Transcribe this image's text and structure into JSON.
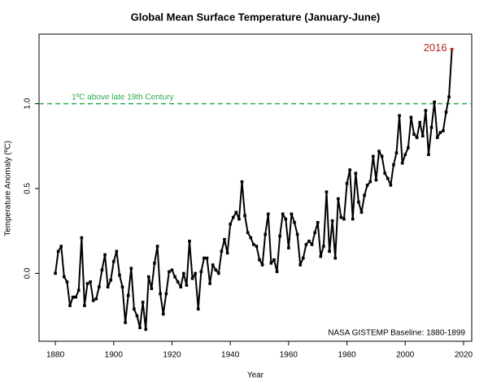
{
  "chart_data": {
    "type": "line",
    "title": "Global Mean Surface Temperature (January-June)",
    "xlabel": "Year",
    "ylabel": "Temperature Anomaly (ºC)",
    "x": [
      1880,
      1881,
      1882,
      1883,
      1884,
      1885,
      1886,
      1887,
      1888,
      1889,
      1890,
      1891,
      1892,
      1893,
      1894,
      1895,
      1896,
      1897,
      1898,
      1899,
      1900,
      1901,
      1902,
      1903,
      1904,
      1905,
      1906,
      1907,
      1908,
      1909,
      1910,
      1911,
      1912,
      1913,
      1914,
      1915,
      1916,
      1917,
      1918,
      1919,
      1920,
      1921,
      1922,
      1923,
      1924,
      1925,
      1926,
      1927,
      1928,
      1929,
      1930,
      1931,
      1932,
      1933,
      1934,
      1935,
      1936,
      1937,
      1938,
      1939,
      1940,
      1941,
      1942,
      1943,
      1944,
      1945,
      1946,
      1947,
      1948,
      1949,
      1950,
      1951,
      1952,
      1953,
      1954,
      1955,
      1956,
      1957,
      1958,
      1959,
      1960,
      1961,
      1962,
      1963,
      1964,
      1965,
      1966,
      1967,
      1968,
      1969,
      1970,
      1971,
      1972,
      1973,
      1974,
      1975,
      1976,
      1977,
      1978,
      1979,
      1980,
      1981,
      1982,
      1983,
      1984,
      1985,
      1986,
      1987,
      1988,
      1989,
      1990,
      1991,
      1992,
      1993,
      1994,
      1995,
      1996,
      1997,
      1998,
      1999,
      2000,
      2001,
      2002,
      2003,
      2004,
      2005,
      2006,
      2007,
      2008,
      2009,
      2010,
      2011,
      2012,
      2013,
      2014,
      2015,
      2016
    ],
    "series": [
      {
        "name": "Temperature Anomaly",
        "color": "#000000",
        "values": [
          0.0,
          0.13,
          0.16,
          -0.02,
          -0.05,
          -0.19,
          -0.14,
          -0.14,
          -0.1,
          0.21,
          -0.19,
          -0.06,
          -0.05,
          -0.16,
          -0.15,
          -0.08,
          0.02,
          0.11,
          -0.08,
          -0.04,
          0.07,
          0.13,
          -0.01,
          -0.08,
          -0.29,
          -0.13,
          0.03,
          -0.21,
          -0.25,
          -0.32,
          -0.17,
          -0.33,
          -0.02,
          -0.09,
          0.06,
          0.16,
          -0.12,
          -0.24,
          -0.12,
          0.01,
          0.02,
          -0.02,
          -0.05,
          -0.08,
          0.0,
          -0.07,
          0.19,
          -0.03,
          0.0,
          -0.21,
          0.01,
          0.09,
          0.09,
          -0.06,
          0.05,
          0.02,
          0.0,
          0.13,
          0.2,
          0.12,
          0.29,
          0.33,
          0.36,
          0.32,
          0.54,
          0.34,
          0.24,
          0.21,
          0.17,
          0.16,
          0.08,
          0.05,
          0.23,
          0.35,
          0.06,
          0.08,
          0.01,
          0.22,
          0.35,
          0.32,
          0.15,
          0.35,
          0.3,
          0.23,
          0.05,
          0.09,
          0.17,
          0.19,
          0.17,
          0.24,
          0.3,
          0.1,
          0.16,
          0.48,
          0.13,
          0.31,
          0.09,
          0.44,
          0.33,
          0.32,
          0.53,
          0.61,
          0.32,
          0.59,
          0.42,
          0.36,
          0.46,
          0.52,
          0.54,
          0.69,
          0.55,
          0.72,
          0.69,
          0.59,
          0.56,
          0.52,
          0.64,
          0.71,
          0.93,
          0.65,
          0.7,
          0.74,
          0.92,
          0.82,
          0.8,
          0.89,
          0.81,
          0.96,
          0.7,
          0.86,
          1.01,
          0.8,
          0.83,
          0.84,
          0.95,
          1.04,
          1.32
        ]
      }
    ],
    "end_label": "2016",
    "end_label_color": "#b22222",
    "reference_line": {
      "value": 1.0,
      "text": "1ºC above late 19th Century",
      "color": "#2eaa4a"
    },
    "note": "NASA GISTEMP Baseline: 1880-1899",
    "xlim": [
      1874.4,
      2022.8
    ],
    "ylim": [
      -0.4,
      1.41
    ],
    "xticks": [
      1880,
      1900,
      1920,
      1940,
      1960,
      1980,
      2000,
      2020
    ],
    "yticks": [
      {
        "value": 0.0,
        "label": "0.0"
      },
      0.5,
      {
        "value": 1.0,
        "label": "1.0"
      }
    ],
    "grid": false
  }
}
